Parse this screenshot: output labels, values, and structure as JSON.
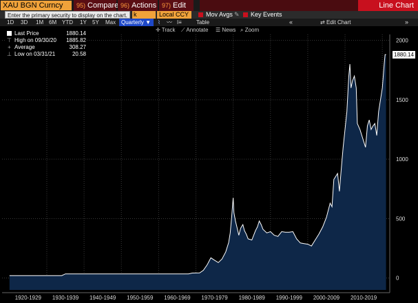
{
  "toolbar": {
    "security": "XAU BGN Curncy",
    "compare_num": "95)",
    "compare": "Compare",
    "actions_num": "96)",
    "actions": "Actions",
    "edit_num": "97)",
    "edit": "Edit",
    "title": "Line Chart",
    "tooltip": "Enter the primary security to display on the chart.",
    "stub": "k",
    "currency": "Local CCY",
    "mov_avgs": "Mov Avgs",
    "key_events": "Key Events"
  },
  "periods": [
    "1D",
    "3D",
    "1M",
    "6M",
    "YTD",
    "1Y",
    "5Y",
    "Max"
  ],
  "frequency": "Quarterly",
  "table_label": "Table",
  "edit_chart": "Edit Chart",
  "tools": {
    "track": "Track",
    "annotate": "Annotate",
    "news": "News",
    "zoom": "Zoom"
  },
  "legend": {
    "last_price_label": "Last Price",
    "last_price": "1880.14",
    "high_label": "High on 09/30/20",
    "high": "1885.82",
    "average_label": "Average",
    "average": "308.27",
    "low_label": "Low on 03/31/21",
    "low": "20.58"
  },
  "colors": {
    "background": "#000000",
    "area_fill": "#0e2748",
    "line": "#ffffff",
    "accent_red": "#c8101e",
    "accent_orange": "#f0a23a",
    "accent_blue": "#1e48c8"
  },
  "chart_data": {
    "type": "area",
    "x_labels": [
      "1920-1929",
      "1930-1939",
      "1940-1949",
      "1950-1959",
      "1960-1969",
      "1970-1979",
      "1980-1989",
      "1990-1999",
      "2000-2009",
      "2010-2019"
    ],
    "ylim": [
      -100,
      2050
    ],
    "yticks": [
      0,
      500,
      1000,
      1500,
      2000
    ],
    "last_value_label": "1880.14",
    "series": [
      {
        "x": [
          1920,
          1934,
          1935,
          1968,
          1969,
          1971,
          1972,
          1973,
          1974,
          1975,
          1976,
          1977,
          1978,
          1978.8,
          1979.2,
          1979.6,
          1980.0,
          1980.2,
          1980.6,
          1981,
          1981.5,
          1982,
          1982.6,
          1983,
          1983.5,
          1984,
          1985,
          1986,
          1986.5,
          1987,
          1987.5,
          1988,
          1989,
          1990,
          1991,
          1992,
          1993,
          1994,
          1995,
          1996,
          1997,
          1998,
          1999,
          2000,
          2001,
          2002,
          2003,
          2004,
          2005,
          2006,
          2006.5,
          2007,
          2008,
          2008.5,
          2009,
          2009.5,
          2010,
          2010.5,
          2011,
          2011.3,
          2011.6,
          2012,
          2012.5,
          2013,
          2013.3,
          2014,
          2015,
          2015.5,
          2016,
          2016.5,
          2017,
          2017.5,
          2018,
          2018.5,
          2019,
          2019.5,
          2020,
          2020.5,
          2020.75,
          2021
        ],
        "y": [
          20.6,
          20.6,
          35,
          35,
          42,
          43,
          65,
          110,
          170,
          150,
          130,
          160,
          220,
          300,
          380,
          520,
          675,
          550,
          480,
          430,
          360,
          420,
          450,
          400,
          370,
          330,
          320,
          400,
          430,
          480,
          450,
          410,
          380,
          390,
          360,
          350,
          390,
          385,
          385,
          390,
          330,
          295,
          290,
          285,
          270,
          320,
          370,
          430,
          510,
          630,
          600,
          830,
          880,
          730,
          920,
          1100,
          1250,
          1400,
          1700,
          1800,
          1600,
          1660,
          1700,
          1600,
          1300,
          1250,
          1150,
          1100,
          1280,
          1330,
          1250,
          1280,
          1300,
          1200,
          1400,
          1500,
          1600,
          1800,
          1880,
          1880.14
        ]
      }
    ]
  }
}
